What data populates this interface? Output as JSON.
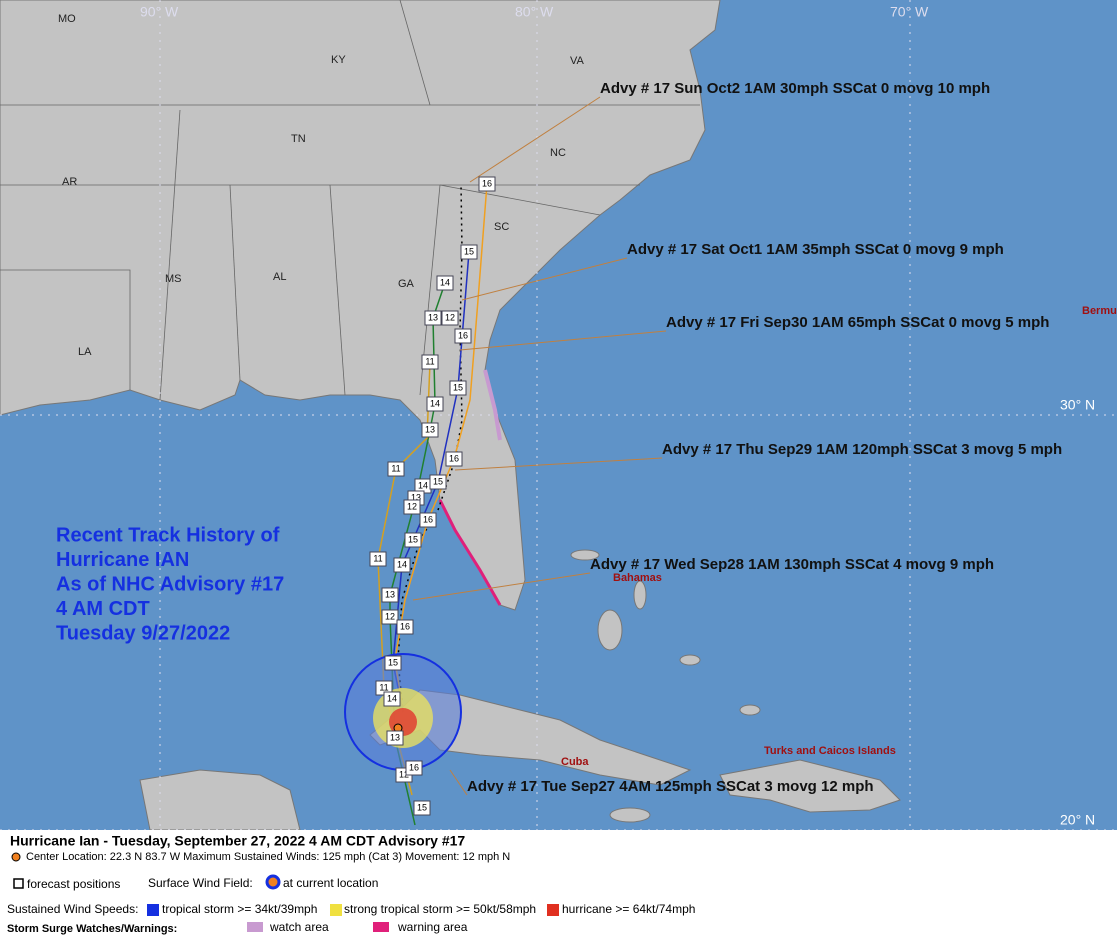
{
  "map": {
    "lon_labels": [
      "90° W",
      "80° W",
      "70° W"
    ],
    "lat_labels": [
      "30° N",
      "20° N"
    ],
    "state_labels": [
      "MO",
      "KY",
      "VA",
      "TN",
      "NC",
      "AR",
      "SC",
      "MS",
      "AL",
      "GA",
      "LA"
    ],
    "place_labels": [
      "Bermu",
      "Bahamas",
      "Cuba",
      "Turks and Caicos Islands"
    ],
    "advisories": [
      "Advy # 17 Sun Oct2 1AM  30mph SSCat 0 movg 10 mph",
      "Advy # 17 Sat Oct1 1AM  35mph SSCat 0 movg 9 mph",
      "Advy # 17 Fri Sep30 1AM  65mph SSCat 0 movg 5 mph",
      "Advy # 17 Thu Sep29 1AM  120mph SSCat 3 movg 5 mph",
      "Advy # 17 Wed Sep28 1AM  130mph SSCat 4 movg 9 mph",
      "Advy # 17 Tue Sep27 4AM  125mph SSCat 3 movg 12 mph"
    ],
    "track_labels": [
      16,
      15,
      14,
      12,
      13,
      16,
      11,
      15,
      14,
      13,
      11,
      16,
      14,
      15,
      13,
      12,
      16,
      11,
      15,
      14,
      13,
      12,
      16,
      15,
      11,
      14,
      13,
      12,
      16,
      15
    ]
  },
  "title_block": [
    "Recent Track History of",
    "Hurricane IAN",
    "As of NHC Advisory #17",
    "4 AM CDT",
    "Tuesday 9/27/2022"
  ],
  "legend": {
    "headline": "Hurricane Ian  -  Tuesday, September 27, 2022  4 AM CDT   Advisory #17",
    "center": "Center Location: 22.3 N  83.7 W  Maximum Sustained Winds: 125 mph (Cat 3) Movement: 12 mph N",
    "forecast_positions": "forecast positions",
    "wind_field": "Surface Wind Field:",
    "current_location": "at current location",
    "wind_speeds": "Sustained Wind Speeds:",
    "tropical_storm": "tropical storm >= 34kt/39mph",
    "strong_tropical_storm": "strong tropical storm >= 50kt/58mph",
    "hurricane": "hurricane >= 64kt/74mph",
    "surge": "Storm Surge Watches/Warnings:",
    "watch": "watch area",
    "warning": "warning area"
  }
}
